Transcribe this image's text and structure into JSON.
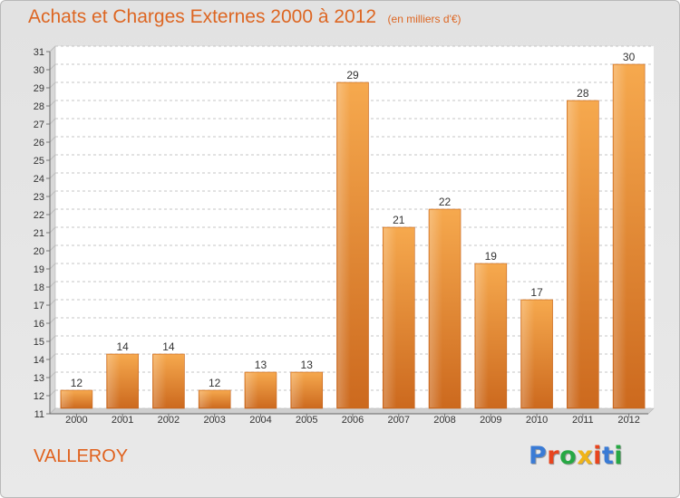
{
  "title": "Achats et Charges Externes 2000 à 2012",
  "subtitle": "(en milliers d'€)",
  "commune": "VALLEROY",
  "logo": {
    "text": "Proxiti",
    "letter_colors": [
      "#3a7bd5",
      "#e8451e",
      "#27a844",
      "#f0b418",
      "#e8451e",
      "#3a7bd5",
      "#27a844"
    ]
  },
  "colors": {
    "accent": "#dd6622",
    "bar_light": "#f5a94f",
    "bar_dark": "#cf6b1f",
    "plot_bg": "#ffffff"
  },
  "chart_data": {
    "type": "bar",
    "title": "Achats et Charges Externes 2000 à 2012",
    "subtitle": "(en milliers d'€)",
    "xlabel": "",
    "ylabel": "",
    "categories": [
      "2000",
      "2001",
      "2002",
      "2003",
      "2004",
      "2005",
      "2006",
      "2007",
      "2008",
      "2009",
      "2010",
      "2011",
      "2012"
    ],
    "values": [
      12,
      14,
      14,
      12,
      13,
      13,
      29,
      21,
      22,
      19,
      17,
      28,
      30
    ],
    "ylim": [
      11,
      31
    ],
    "yticks": [
      11,
      12,
      13,
      14,
      15,
      16,
      17,
      18,
      19,
      20,
      21,
      22,
      23,
      24,
      25,
      26,
      27,
      28,
      29,
      30,
      31
    ],
    "grid": true,
    "data_labels": true
  }
}
